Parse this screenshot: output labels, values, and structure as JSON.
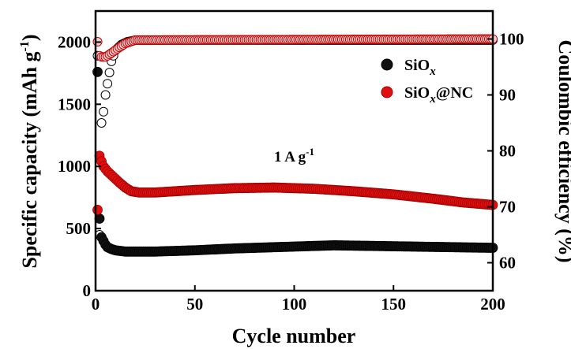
{
  "chart_data": {
    "type": "scatter",
    "xlabel": "Cycle number",
    "ylabel_left": "Specific capacity (mAh g",
    "ylabel_left_sup": "-1",
    "ylabel_left_close": ")",
    "ylabel_right": "Coulombic efficiency (%)",
    "xlim": [
      0,
      200
    ],
    "ylim_left": [
      0,
      2250
    ],
    "ylim_right": [
      55,
      105
    ],
    "x_ticks": [
      0,
      50,
      100,
      150,
      200
    ],
    "x_tick_labels": [
      "0",
      "50",
      "100",
      "150",
      "200"
    ],
    "y_left_ticks": [
      0,
      500,
      1000,
      1500,
      2000
    ],
    "y_left_tick_labels": [
      "0",
      "500",
      "1000",
      "1500",
      "2000"
    ],
    "y_right_ticks": [
      60,
      70,
      80,
      90,
      100
    ],
    "y_right_tick_labels": [
      "60",
      "70",
      "80",
      "90",
      "100"
    ],
    "annotation": {
      "main": "1 A g",
      "sup": "-1",
      "x": 100,
      "y": 1040
    },
    "legend": {
      "position": "top-right",
      "items": [
        {
          "main": "SiO",
          "sub": "x",
          "suffix": ""
        },
        {
          "main": "SiO",
          "sub": "x",
          "suffix": "@NC"
        }
      ]
    },
    "series": [
      {
        "name": "SiOx",
        "color": "#000000",
        "capacity": [
          [
            1,
            1760
          ],
          [
            2,
            580
          ],
          [
            3,
            430
          ],
          [
            4,
            400
          ],
          [
            5,
            370
          ],
          [
            6,
            350
          ],
          [
            8,
            335
          ],
          [
            10,
            325
          ],
          [
            15,
            315
          ],
          [
            20,
            315
          ],
          [
            30,
            315
          ],
          [
            50,
            325
          ],
          [
            70,
            340
          ],
          [
            90,
            350
          ],
          [
            110,
            360
          ],
          [
            120,
            365
          ],
          [
            140,
            360
          ],
          [
            160,
            355
          ],
          [
            180,
            350
          ],
          [
            200,
            345
          ]
        ],
        "efficiency": [
          [
            1,
            97
          ],
          [
            2,
            65
          ],
          [
            3,
            85
          ],
          [
            4,
            87
          ],
          [
            5,
            90
          ],
          [
            6,
            92
          ],
          [
            7,
            94
          ],
          [
            8,
            96
          ],
          [
            10,
            98
          ],
          [
            13,
            99
          ],
          [
            16,
            99.5
          ],
          [
            20,
            99.8
          ],
          [
            200,
            99.8
          ]
        ]
      },
      {
        "name": "SiOx@NC",
        "color": "#e01010",
        "capacity": [
          [
            1,
            650
          ],
          [
            2,
            1085
          ],
          [
            3,
            1040
          ],
          [
            4,
            1000
          ],
          [
            5,
            980
          ],
          [
            6,
            960
          ],
          [
            8,
            930
          ],
          [
            10,
            900
          ],
          [
            12,
            870
          ],
          [
            15,
            830
          ],
          [
            18,
            800
          ],
          [
            22,
            790
          ],
          [
            30,
            790
          ],
          [
            50,
            810
          ],
          [
            70,
            825
          ],
          [
            90,
            830
          ],
          [
            110,
            820
          ],
          [
            130,
            800
          ],
          [
            150,
            775
          ],
          [
            170,
            740
          ],
          [
            185,
            710
          ],
          [
            200,
            690
          ]
        ],
        "efficiency": [
          [
            1,
            99.5
          ],
          [
            2,
            97
          ],
          [
            3,
            96.8
          ],
          [
            4,
            96.8
          ],
          [
            5,
            96.8
          ],
          [
            6,
            97
          ],
          [
            8,
            97.5
          ],
          [
            10,
            98
          ],
          [
            12,
            98.5
          ],
          [
            15,
            99.2
          ],
          [
            20,
            99.8
          ],
          [
            200,
            100
          ]
        ]
      }
    ]
  }
}
